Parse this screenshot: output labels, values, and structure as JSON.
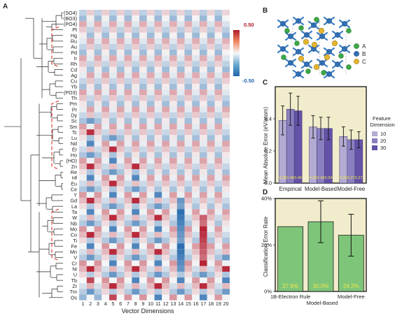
{
  "panels": {
    "a": "A",
    "b": "B",
    "c": "C",
    "d": "D"
  },
  "heatmap": {
    "row_labels": [
      "(SO4)",
      "(BO3)",
      "(PO4)",
      "Pt",
      "Hg",
      "Ru",
      "Au",
      "Pd",
      "Ir",
      "Rh",
      "Cd",
      "Ag",
      "Cu",
      "Yb",
      "(PO3)",
      "Th",
      "Pm",
      "Pr",
      "Dy",
      "Sc",
      "Sm",
      "Tc",
      "Lu",
      "Nd",
      "Er",
      "Ho",
      "(HO)",
      "Zn",
      "Re",
      "Hf",
      "Eu",
      "Ce",
      "Y",
      "Gd",
      "La",
      "Ta",
      "W",
      "Nb",
      "Mo",
      "Co",
      "Ti",
      "Fe",
      "Mn",
      "V",
      "Cr",
      "Ni",
      "U",
      "Tb",
      "Zr",
      "Tm",
      "Os"
    ],
    "col_labels": [
      "1",
      "2",
      "3",
      "4",
      "5",
      "6",
      "7",
      "8",
      "9",
      "10",
      "11",
      "12",
      "13",
      "14",
      "15",
      "16",
      "17",
      "18",
      "19",
      "20"
    ],
    "x_title": "Vector Dimensions",
    "colorbar": {
      "max_label": "0.50",
      "min_label": "-0.50",
      "pos_color": "#b2182b",
      "neg_color": "#2166ac"
    },
    "cluster_bracket_color": "#d9342b"
  },
  "crystal": {
    "legend": [
      "A",
      "B",
      "C"
    ],
    "colors": {
      "A": "#3aa845",
      "B": "#2f6fb5",
      "C": "#e2b531"
    }
  },
  "chart_data": [
    {
      "type": "bar",
      "panel": "C",
      "ylabel": "Mean Absolute Error (eV/atom)",
      "ylim": [
        0,
        0.6
      ],
      "yticks": [
        "0.0",
        "0.2",
        "0.4"
      ],
      "categories": [
        "Empirical",
        "Model-Based",
        "Model-Free"
      ],
      "legend_title": "Feature\nDimension",
      "series": [
        {
          "name": "10",
          "color": "#b3abd3",
          "values": [
            0.39,
            0.35,
            0.29
          ],
          "error": [
            0.09,
            0.07,
            0.06
          ]
        },
        {
          "name": "20",
          "color": "#8a7fc0",
          "values": [
            0.46,
            0.34,
            0.27
          ],
          "error": [
            0.1,
            0.07,
            0.06
          ]
        },
        {
          "name": "30",
          "color": "#6452a8",
          "values": [
            0.45,
            0.34,
            0.27
          ],
          "error": [
            0.09,
            0.07,
            0.05
          ]
        }
      ],
      "value_labels": [
        "0.39",
        "0.46",
        "0.45",
        "0.35",
        "0.34",
        "0.34",
        "0.29",
        "0.27",
        "0.27"
      ],
      "background": "#f1eccb"
    },
    {
      "type": "bar",
      "panel": "D",
      "ylabel": "Classification Error Rate",
      "ylim": [
        0,
        40
      ],
      "yticks": [
        "0%",
        "20%",
        "40%"
      ],
      "categories": [
        "1B-Electron Rule",
        "Model-Based",
        "Model-Free"
      ],
      "values": [
        27.9,
        30.0,
        24.2
      ],
      "error": [
        0,
        9,
        9
      ],
      "value_labels": [
        "27.9%",
        "30.0%",
        "24.2%"
      ],
      "bar_color": "#7ec57a",
      "value_label_color": "#f2e84a",
      "background": "#f1eccb"
    }
  ]
}
